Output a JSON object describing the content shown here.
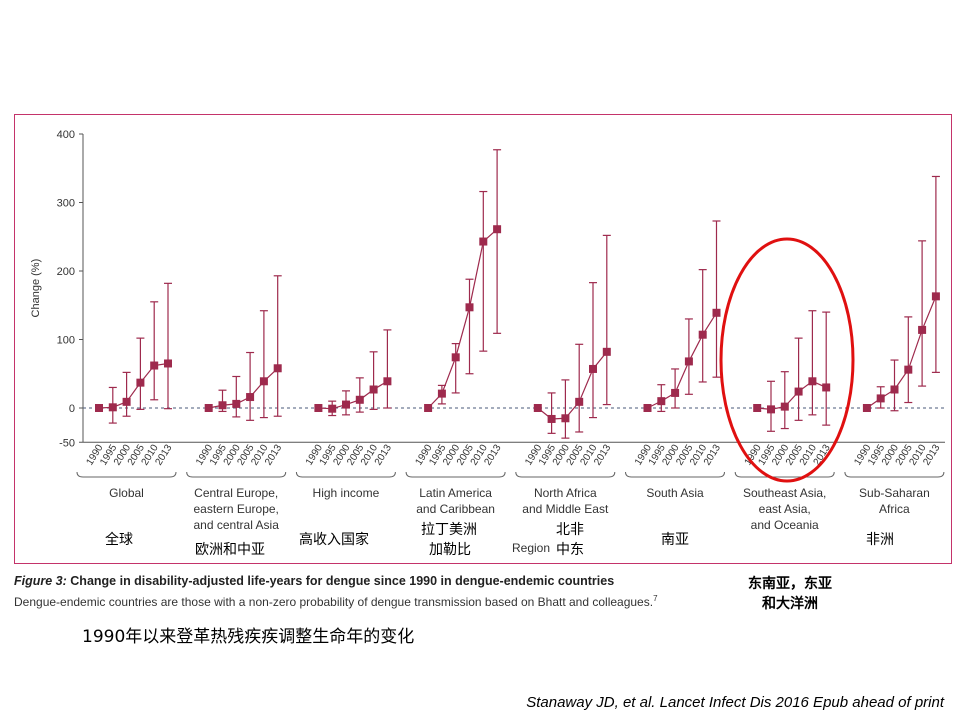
{
  "figure": {
    "caption_label": "Figure 3:",
    "caption_title": "Change in disability-adjusted life-years for dengue since 1990 in dengue-endemic countries",
    "caption_note": "Dengue-endemic countries are those with a non-zero probability of dengue transmission based on Bhatt and colleagues.",
    "caption_ref": "7",
    "region_axis_label": "Region"
  },
  "annotations": {
    "chinese_title": "1990年以来登革热残疾疾调整生命年的变化",
    "citation": "Stanaway JD, et al. Lancet Infect Dis 2016 Epub ahead of print",
    "southeast_asia_cn_line1": "东南亚，东亚",
    "southeast_asia_cn_line2": "和大洋洲",
    "region_cn": [
      "全球",
      "欧洲和中亚",
      "高收入国家",
      "拉丁美洲",
      "加勒比",
      "北非",
      "中东",
      "南亚",
      "非洲"
    ],
    "highlight_color": "#e01010"
  },
  "colors": {
    "series": "#9e2a4d",
    "grid": "#4a5a7a",
    "axis_text": "#333333"
  },
  "chart_data": {
    "type": "line",
    "ylabel": "Change (%)",
    "ylim": [
      -50,
      400
    ],
    "yticks": [
      -50,
      0,
      100,
      200,
      300,
      400
    ],
    "zero_line": "dashed",
    "x": [
      "1990",
      "1995",
      "2000",
      "2005",
      "2010",
      "2013"
    ],
    "groups": [
      {
        "name": "Global",
        "values": [
          0,
          1,
          9,
          37,
          62,
          65
        ],
        "lower": [
          0,
          -22,
          -12,
          -2,
          12,
          -1
        ],
        "upper": [
          0,
          30,
          52,
          102,
          155,
          182
        ]
      },
      {
        "name": "Central Europe, eastern Europe, and central Asia",
        "values": [
          0,
          4,
          6,
          16,
          39,
          58
        ],
        "lower": [
          0,
          -5,
          -13,
          -18,
          -14,
          -12
        ],
        "upper": [
          0,
          26,
          46,
          81,
          142,
          193
        ]
      },
      {
        "name": "High income",
        "values": [
          0,
          -1,
          5,
          12,
          27,
          39
        ],
        "lower": [
          0,
          -11,
          -10,
          -6,
          -2,
          0
        ],
        "upper": [
          0,
          10,
          25,
          44,
          82,
          114
        ]
      },
      {
        "name": "Latin America and Caribbean",
        "values": [
          0,
          21,
          74,
          147,
          243,
          261
        ],
        "lower": [
          0,
          6,
          22,
          50,
          83,
          109
        ],
        "upper": [
          0,
          33,
          94,
          188,
          316,
          377
        ]
      },
      {
        "name": "North Africa and Middle East",
        "values": [
          0,
          -16,
          -15,
          9,
          57,
          82
        ],
        "lower": [
          0,
          -37,
          -44,
          -35,
          -14,
          5
        ],
        "upper": [
          0,
          22,
          41,
          93,
          183,
          252
        ]
      },
      {
        "name": "South Asia",
        "values": [
          0,
          10,
          22,
          68,
          107,
          139
        ],
        "lower": [
          0,
          -5,
          0,
          20,
          38,
          45
        ],
        "upper": [
          0,
          34,
          57,
          130,
          202,
          273
        ]
      },
      {
        "name": "Southeast Asia, east Asia, and Oceania",
        "values": [
          0,
          -2,
          2,
          24,
          39,
          30
        ],
        "lower": [
          0,
          -34,
          -30,
          -18,
          -10,
          -25
        ],
        "upper": [
          0,
          39,
          53,
          102,
          142,
          140
        ]
      },
      {
        "name": "Sub-Saharan Africa",
        "values": [
          0,
          14,
          27,
          56,
          114,
          163
        ],
        "lower": [
          0,
          0,
          -4,
          8,
          32,
          52
        ],
        "upper": [
          0,
          31,
          70,
          133,
          244,
          338
        ]
      }
    ],
    "group_labels": [
      [
        "Global"
      ],
      [
        "Central Europe,",
        "eastern Europe,",
        "and central Asia"
      ],
      [
        "High income"
      ],
      [
        "Latin America",
        "and Caribbean"
      ],
      [
        "North Africa",
        "and Middle East"
      ],
      [
        "South Asia"
      ],
      [
        "Southeast Asia,",
        "east Asia,",
        "and Oceania"
      ],
      [
        "Sub-Saharan",
        "Africa"
      ]
    ]
  }
}
